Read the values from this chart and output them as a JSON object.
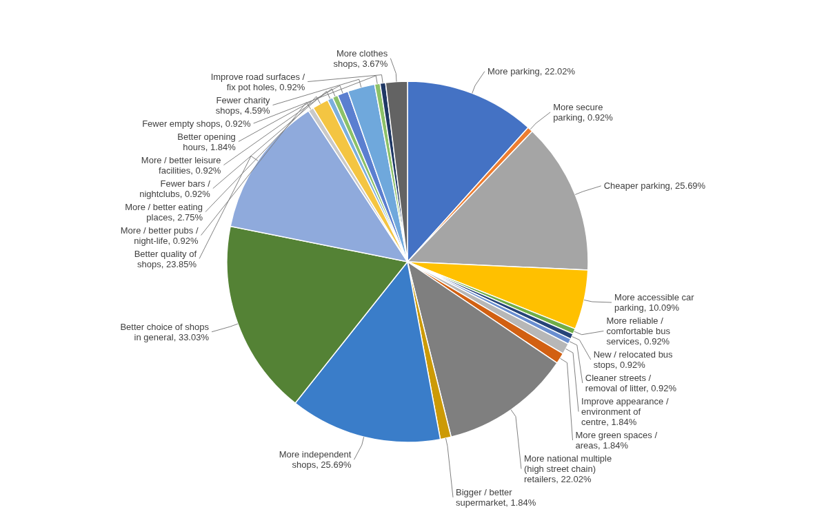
{
  "chart_data": {
    "type": "pie",
    "categories": [
      "More parking",
      "More secure parking",
      "Cheaper parking",
      "More accessible car parking",
      "More reliable / comfortable bus services",
      "New / relocated bus stops",
      "Cleaner streets / removal of litter",
      "Improve appearance / environment of centre",
      "More green spaces / areas",
      "More national multiple (high street chain) retailers",
      "Bigger / better supermarket",
      "More independent shops",
      "Better choice of shops in general",
      "Better quality of shops",
      "More / better pubs / night-life",
      "More / better eating places",
      "Fewer bars / nightclubs",
      "More / better leisure facilities",
      "Better opening hours",
      "Fewer charity shops",
      "Fewer empty shops",
      "Improve road surfaces / fix pot holes",
      "More clothes shops"
    ],
    "values": [
      22.02,
      0.92,
      25.69,
      10.09,
      0.92,
      0.92,
      0.92,
      1.84,
      1.84,
      22.02,
      1.84,
      25.69,
      33.03,
      23.85,
      0.92,
      2.75,
      0.92,
      0.92,
      1.84,
      4.59,
      0.92,
      0.92,
      3.67
    ],
    "value_labels": [
      "22.02%",
      "0.92%",
      "25.69%",
      "10.09%",
      "0.92%",
      "0.92%",
      "0.92%",
      "1.84%",
      "1.84%",
      "22.02%",
      "1.84%",
      "25.69%",
      "33.03%",
      "23.85%",
      "0.92%",
      "2.75%",
      "0.92%",
      "0.92%",
      "1.84%",
      "4.59%",
      "0.92%",
      "0.92%",
      "3.67%"
    ],
    "colors": [
      "#4472c4",
      "#ed7d31",
      "#a5a5a5",
      "#ffc000",
      "#70ad47",
      "#264478",
      "#698ed0",
      "#b7b7b7",
      "#d26012",
      "#7f7f7f",
      "#cc9a06",
      "#3a7dc9",
      "#548235",
      "#8faadc",
      "#c9c9c9",
      "#f4c542",
      "#7cafdd",
      "#8cc168",
      "#5b7fd0",
      "#6fa8dc",
      "#8cc168",
      "#1f3864",
      "#636363"
    ]
  }
}
